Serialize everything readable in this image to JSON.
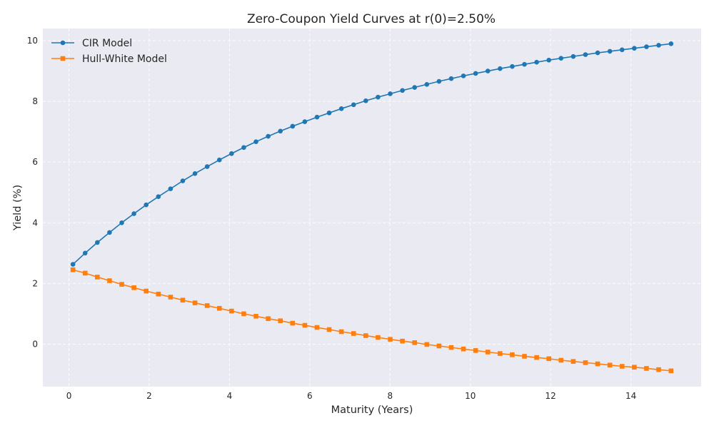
{
  "chart_data": {
    "type": "line",
    "title": "Zero-Coupon Yield Curves at r(0)=2.50%",
    "xlabel": "Maturity (Years)",
    "ylabel": "Yield (%)",
    "xlim": [
      -0.65,
      15.75
    ],
    "ylim": [
      -1.4,
      10.4
    ],
    "xticks": [
      0,
      2,
      4,
      6,
      8,
      10,
      12,
      14
    ],
    "yticks": [
      0,
      2,
      4,
      6,
      8,
      10
    ],
    "grid": true,
    "legend_position": "top-left",
    "x": [
      0.1,
      0.404,
      0.708,
      1.012,
      1.316,
      1.62,
      1.924,
      2.228,
      2.532,
      2.836,
      3.14,
      3.444,
      3.748,
      4.052,
      4.356,
      4.66,
      4.964,
      5.268,
      5.572,
      5.876,
      6.18,
      6.484,
      6.788,
      7.092,
      7.396,
      7.7,
      8.004,
      8.308,
      8.612,
      8.916,
      9.22,
      9.524,
      9.828,
      10.132,
      10.436,
      10.74,
      11.044,
      11.348,
      11.652,
      11.956,
      12.26,
      12.564,
      12.868,
      13.172,
      13.476,
      13.78,
      14.084,
      14.388,
      14.692,
      15.0
    ],
    "series": [
      {
        "name": "CIR Model",
        "color": "#1f77b4",
        "marker": "circle",
        "values": [
          2.63,
          3.0,
          3.35,
          3.68,
          4.0,
          4.3,
          4.59,
          4.86,
          5.12,
          5.38,
          5.62,
          5.85,
          6.07,
          6.28,
          6.48,
          6.67,
          6.85,
          7.02,
          7.18,
          7.33,
          7.48,
          7.62,
          7.76,
          7.89,
          8.02,
          8.14,
          8.25,
          8.36,
          8.46,
          8.56,
          8.66,
          8.75,
          8.84,
          8.92,
          9.0,
          9.08,
          9.15,
          9.22,
          9.29,
          9.36,
          9.42,
          9.48,
          9.54,
          9.6,
          9.65,
          9.7,
          9.75,
          9.8,
          9.85,
          9.9
        ]
      },
      {
        "name": "Hull-White Model",
        "color": "#ff7f0e",
        "marker": "square",
        "values": [
          2.45,
          2.34,
          2.21,
          2.09,
          1.97,
          1.86,
          1.75,
          1.65,
          1.55,
          1.45,
          1.36,
          1.27,
          1.18,
          1.09,
          1.0,
          0.92,
          0.84,
          0.77,
          0.69,
          0.62,
          0.55,
          0.48,
          0.41,
          0.35,
          0.28,
          0.22,
          0.16,
          0.1,
          0.05,
          -0.01,
          -0.06,
          -0.11,
          -0.16,
          -0.21,
          -0.26,
          -0.31,
          -0.35,
          -0.4,
          -0.44,
          -0.48,
          -0.53,
          -0.57,
          -0.61,
          -0.65,
          -0.69,
          -0.73,
          -0.76,
          -0.8,
          -0.84,
          -0.88
        ]
      }
    ]
  }
}
